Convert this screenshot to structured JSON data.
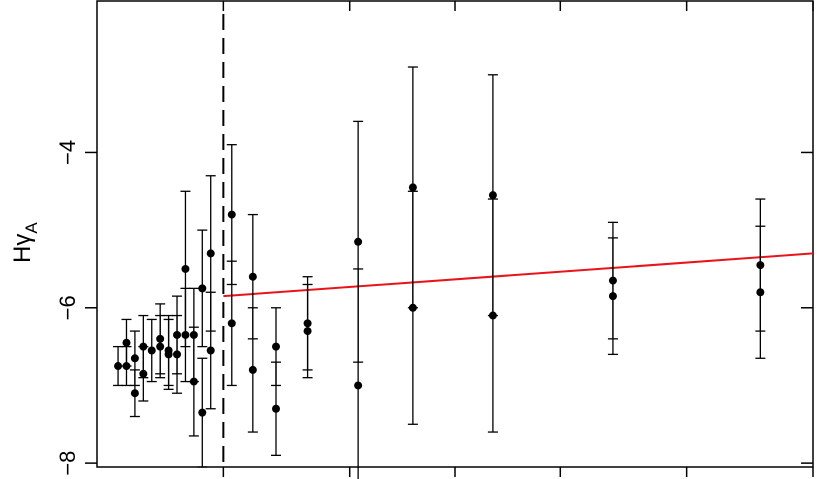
{
  "chart_data": {
    "type": "scatter",
    "title": "",
    "xlabel": "",
    "ylabel": "Hγ",
    "ylabel_sub": "A",
    "ylim": [
      -8.05,
      -2.05
    ],
    "xlim": [
      0,
      34
    ],
    "y_ticks": [
      -8,
      -6,
      -4
    ],
    "y_tick_labels": [
      "−8",
      "−6",
      "−4"
    ],
    "x_ticks": [
      6,
      12,
      17,
      22,
      28,
      34
    ],
    "x_tick_labels": [],
    "grid": false,
    "legend": "none",
    "vline": {
      "x": 6,
      "style": "dashed",
      "color": "#000000"
    },
    "fit_line": {
      "x": [
        6,
        34
      ],
      "y": [
        -5.85,
        -5.3
      ],
      "color": "#e8141a"
    },
    "points": [
      {
        "x": 1.0,
        "y": -6.75,
        "err": 0.25
      },
      {
        "x": 1.4,
        "y": -6.75,
        "err": 0.25
      },
      {
        "x": 1.4,
        "y": -6.45,
        "err": 0.3
      },
      {
        "x": 1.8,
        "y": -6.65,
        "err": 0.35
      },
      {
        "x": 1.8,
        "y": -7.1,
        "err": 0.3
      },
      {
        "x": 2.2,
        "y": -6.85,
        "err": 0.35
      },
      {
        "x": 2.2,
        "y": -6.5,
        "err": 0.4
      },
      {
        "x": 2.6,
        "y": -6.55,
        "err": 0.4
      },
      {
        "x": 3.0,
        "y": -6.4,
        "err": 0.45
      },
      {
        "x": 3.0,
        "y": -6.5,
        "err": 0.4
      },
      {
        "x": 3.4,
        "y": -6.6,
        "err": 0.45
      },
      {
        "x": 3.4,
        "y": -6.55,
        "err": 0.45
      },
      {
        "x": 3.8,
        "y": -6.35,
        "err": 0.5
      },
      {
        "x": 3.8,
        "y": -6.6,
        "err": 0.5
      },
      {
        "x": 4.2,
        "y": -5.5,
        "err": 1.0
      },
      {
        "x": 4.2,
        "y": -6.35,
        "err": 0.6
      },
      {
        "x": 4.6,
        "y": -6.35,
        "err": 0.6
      },
      {
        "x": 4.6,
        "y": -6.95,
        "err": 0.7
      },
      {
        "x": 5.0,
        "y": -5.75,
        "err": 0.75
      },
      {
        "x": 5.0,
        "y": -7.35,
        "err": 0.7
      },
      {
        "x": 5.4,
        "y": -5.3,
        "err": 1.0
      },
      {
        "x": 5.4,
        "y": -6.55,
        "err": 0.75
      },
      {
        "x": 6.4,
        "y": -4.8,
        "err": 0.9
      },
      {
        "x": 6.4,
        "y": -6.2,
        "err": 0.8
      },
      {
        "x": 7.4,
        "y": -5.6,
        "err": 0.8
      },
      {
        "x": 7.4,
        "y": -6.8,
        "err": 0.8
      },
      {
        "x": 8.5,
        "y": -6.5,
        "err": 0.5
      },
      {
        "x": 8.5,
        "y": -7.3,
        "err": 0.6
      },
      {
        "x": 10.0,
        "y": -6.2,
        "err": 0.6
      },
      {
        "x": 10.0,
        "y": -6.3,
        "err": 0.6
      },
      {
        "x": 12.4,
        "y": -5.15,
        "err": 1.55
      },
      {
        "x": 12.4,
        "y": -7.0,
        "err": 1.5
      },
      {
        "x": 15.0,
        "y": -4.45,
        "err": 1.55
      },
      {
        "x": 15.0,
        "y": -6.0,
        "err": 1.5
      },
      {
        "x": 18.8,
        "y": -4.55,
        "err": 1.55
      },
      {
        "x": 18.8,
        "y": -6.1,
        "err": 1.5
      },
      {
        "x": 24.5,
        "y": -5.65,
        "err": 0.75
      },
      {
        "x": 24.5,
        "y": -5.85,
        "err": 0.75
      },
      {
        "x": 31.5,
        "y": -5.45,
        "err": 0.85
      },
      {
        "x": 31.5,
        "y": -5.8,
        "err": 0.85
      }
    ]
  }
}
